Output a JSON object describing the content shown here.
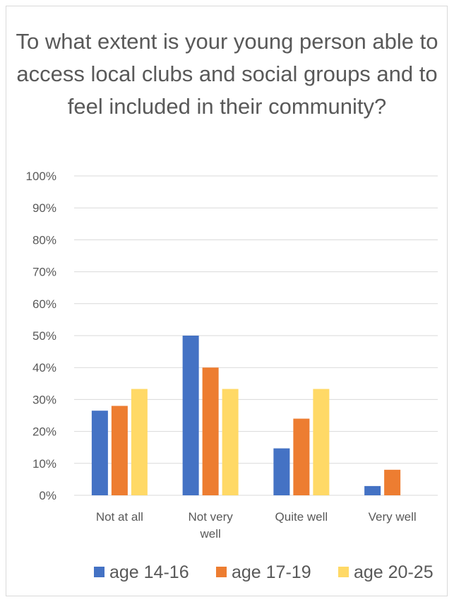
{
  "chart_data": {
    "type": "bar",
    "title": "To what extent is your young person able to access local clubs and social groups and to feel included in their community?",
    "categories": [
      [
        "Not at all"
      ],
      [
        "Not very",
        "well"
      ],
      [
        "Quite well"
      ],
      [
        "Very well"
      ]
    ],
    "series": [
      {
        "name": "age 14-16",
        "color": "#4472C4",
        "values": [
          26.5,
          50,
          14.7,
          2.9
        ]
      },
      {
        "name": "age 17-19",
        "color": "#ED7D31",
        "values": [
          28,
          40,
          24,
          8
        ]
      },
      {
        "name": "age 20-25",
        "color": "#FFD966",
        "values": [
          33.3,
          33.3,
          33.3,
          0
        ]
      }
    ],
    "ylim": [
      0,
      100
    ],
    "yticks": [
      "0%",
      "10%",
      "20%",
      "30%",
      "40%",
      "50%",
      "60%",
      "70%",
      "80%",
      "90%",
      "100%"
    ],
    "grid": true,
    "legend": "bottom"
  }
}
